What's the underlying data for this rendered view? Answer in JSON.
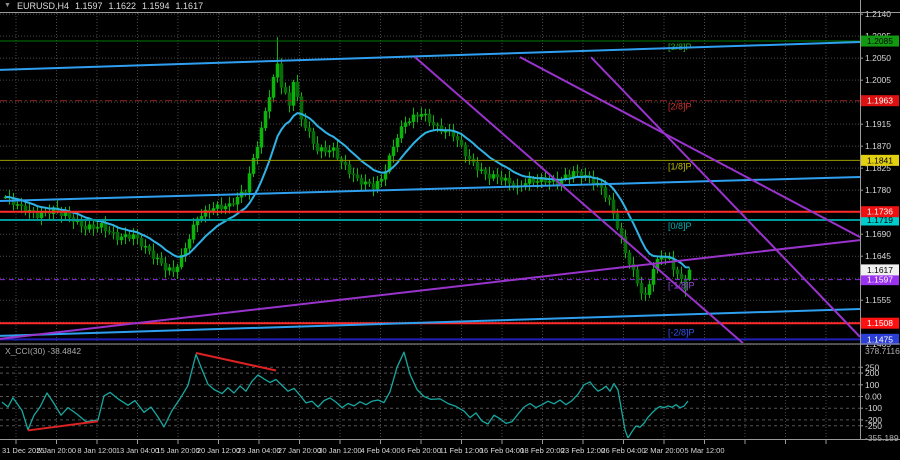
{
  "title": {
    "symbol": "EURUSD,H4",
    "open": "1.1597",
    "high": "1.1622",
    "low": "1.1594",
    "close": "1.1617",
    "dropdown_icon": "symbol-dropdown"
  },
  "colors": {
    "background": "#000000",
    "grid": "#4a4a4a",
    "pane_border": "#9a9a9a",
    "axis_text": "#d8d8d8",
    "bull_candle": "#0ab50a",
    "bear_candle": "#076e07",
    "wick": "#0db80d",
    "ma_line": "#2fb3e6",
    "channel_line": "#2f9ff0",
    "purple_line": "#9933cc",
    "sr_red": "#ff2a2a",
    "cci_line": "#16a8a0",
    "cci_trend_red": "#dd2222"
  },
  "chart_data": {
    "type": "candlestick",
    "symbol": "EURUSD",
    "timeframe": "H4",
    "grid": true,
    "x_labels": [
      "31 Dec 2025",
      "5 Jan 20:00",
      "8 Jan 12:00",
      "13 Jan 04:00",
      "15 Jan 20:00",
      "20 Jan 12:00",
      "23 Jan 04:00",
      "27 Jan 20:00",
      "30 Jan 12:00",
      "4 Feb 04:00",
      "6 Feb 20:00",
      "11 Feb 12:00",
      "16 Feb 04:00",
      "18 Feb 20:00",
      "23 Feb 12:00",
      "26 Feb 04:00",
      "2 Mar 20:00",
      "5 Mar 12:00"
    ],
    "y_ticks": [
      "1.2140",
      "1.2095",
      "1.2050",
      "1.2005",
      "1.1960",
      "1.1915",
      "1.1870",
      "1.1825",
      "1.1780",
      "1.1735",
      "1.1690",
      "1.1645",
      "1.1600",
      "1.1555",
      "1.1510",
      "1.1465"
    ],
    "y_tick_top": 1.214,
    "y_tick_step": 0.0045,
    "candle_count": 172,
    "close_anchors": [
      [
        0,
        1.1766
      ],
      [
        4,
        1.1744
      ],
      [
        8,
        1.1729
      ],
      [
        12,
        1.174
      ],
      [
        16,
        1.1725
      ],
      [
        20,
        1.1703
      ],
      [
        24,
        1.1707
      ],
      [
        28,
        1.1683
      ],
      [
        32,
        1.1687
      ],
      [
        36,
        1.1654
      ],
      [
        40,
        1.1621
      ],
      [
        42,
        1.1613
      ],
      [
        44,
        1.1642
      ],
      [
        48,
        1.1724
      ],
      [
        52,
        1.1744
      ],
      [
        56,
        1.1748
      ],
      [
        60,
        1.1781
      ],
      [
        64,
        1.1904
      ],
      [
        66,
        1.1975
      ],
      [
        68,
        1.2038
      ],
      [
        69,
        1.1995
      ],
      [
        71,
        1.1954
      ],
      [
        72,
        1.2005
      ],
      [
        74,
        1.1927
      ],
      [
        78,
        1.1862
      ],
      [
        82,
        1.1862
      ],
      [
        84,
        1.1837
      ],
      [
        88,
        1.1801
      ],
      [
        92,
        1.1788
      ],
      [
        94,
        1.1801
      ],
      [
        98,
        1.1891
      ],
      [
        100,
        1.1919
      ],
      [
        104,
        1.1938
      ],
      [
        108,
        1.1907
      ],
      [
        112,
        1.1895
      ],
      [
        116,
        1.1842
      ],
      [
        120,
        1.1811
      ],
      [
        124,
        1.1805
      ],
      [
        128,
        1.1784
      ],
      [
        130,
        1.1797
      ],
      [
        134,
        1.1801
      ],
      [
        138,
        1.1797
      ],
      [
        142,
        1.1817
      ],
      [
        146,
        1.1805
      ],
      [
        149,
        1.1784
      ],
      [
        151,
        1.1756
      ],
      [
        153,
        1.1707
      ],
      [
        155,
        1.1653
      ],
      [
        157,
        1.1612
      ],
      [
        159,
        1.1572
      ],
      [
        160,
        1.1561
      ],
      [
        162,
        1.162
      ],
      [
        164,
        1.1647
      ],
      [
        166,
        1.1637
      ],
      [
        168,
        1.1608
      ],
      [
        170,
        1.1582
      ],
      [
        171,
        1.1617
      ]
    ],
    "last_candle": {
      "open": 1.1597,
      "high": 1.1622,
      "low": 1.1594,
      "close": 1.1617
    },
    "spike": {
      "index": 68,
      "high": 1.2093
    },
    "ma_period": 13,
    "murray_lines": [
      {
        "label": "[3/8]P",
        "price": 1.2085,
        "color": "#007700",
        "label_color": "#22aa22",
        "width": 1,
        "dash": "",
        "badge": "1.2085",
        "badge_bg": "#119911",
        "badge_fg": "#000000",
        "label_dy": 9
      },
      {
        "label": "[2/8]P",
        "price": 1.1963,
        "color": "#992222",
        "label_color": "#cc3333",
        "width": 1,
        "dash": "7,3,2,3",
        "badge": "1.1963",
        "badge_bg": "#dd1111",
        "badge_fg": "#ffffff",
        "label_dy": 9
      },
      {
        "label": "[1/8]P",
        "price": 1.1841,
        "color": "#999900",
        "label_color": "#b8b800",
        "width": 1,
        "dash": "",
        "badge": "1.1841",
        "badge_bg": "#e3d011",
        "badge_fg": "#000000",
        "label_dy": 9
      },
      {
        "label": "[0/8]P",
        "price": 1.1719,
        "color": "#009999",
        "label_color": "#00b3b3",
        "width": 2,
        "dash": "",
        "badge": "1.1719",
        "badge_bg": "#00cccc",
        "badge_fg": "#000000",
        "label_dy": 9
      },
      {
        "label": "[-1/8]P",
        "price": 1.1597,
        "color": "#8a2be2",
        "label_color": "#9944dd",
        "width": 1,
        "dash": "5,4",
        "badge": "1.1597",
        "badge_bg": "#9933ee",
        "badge_fg": "#ffffff",
        "label_dy": 9
      },
      {
        "label": "[-2/8]P",
        "price": 1.1475,
        "color": "#2020bb",
        "label_color": "#3355ee",
        "width": 2,
        "dash": "",
        "badge": "1.1475",
        "badge_bg": "#2b3fd6",
        "badge_fg": "#ffffff",
        "label_dy": -4
      }
    ],
    "sr_lines": [
      {
        "price": 1.1736,
        "badge": "1.1736",
        "badge_bg": "#ee1111",
        "badge_fg": "#ffffff"
      },
      {
        "price": 1.1508,
        "badge": "1.1508",
        "badge_bg": "#ff1111",
        "badge_fg": "#ffffff"
      }
    ],
    "current_price_badge": {
      "value": "1.1617",
      "price": 1.1617,
      "bg": "#f0f0f0",
      "fg": "#000000"
    },
    "cyan_channels": [
      {
        "points": [
          [
            0,
            1.2026
          ],
          [
            860,
            1.2083
          ]
        ]
      },
      {
        "points": [
          [
            0,
            1.1758
          ],
          [
            860,
            1.1807
          ]
        ]
      },
      {
        "points": [
          [
            0,
            1.1482
          ],
          [
            860,
            1.1537
          ]
        ]
      }
    ],
    "purple_trendlines": [
      {
        "points": [
          [
            415,
            1.2052
          ],
          [
            743,
            1.1467
          ]
        ]
      },
      {
        "points": [
          [
            591,
            1.2052
          ],
          [
            860,
            1.148
          ]
        ]
      },
      {
        "points": [
          [
            520,
            1.2052
          ],
          [
            860,
            1.1684
          ]
        ]
      },
      {
        "points": [
          [
            0,
            1.1476
          ],
          [
            860,
            1.1678
          ]
        ]
      }
    ],
    "indicator": {
      "name_label": "X_CCI(30)",
      "current_value": "-38.4842",
      "max_label": "378.7116",
      "min_label": "-355.189",
      "level_ticks": [
        "250",
        "200",
        "100",
        "0.00",
        "-100",
        "-200",
        "-250"
      ],
      "levels": [
        250,
        200,
        100,
        0,
        -100,
        -200,
        -250
      ],
      "anchors": [
        [
          2,
          -48
        ],
        [
          8,
          -90
        ],
        [
          13,
          -10
        ],
        [
          22,
          -120
        ],
        [
          28,
          -285
        ],
        [
          34,
          -160
        ],
        [
          40,
          -90
        ],
        [
          47,
          30
        ],
        [
          54,
          -60
        ],
        [
          61,
          -160
        ],
        [
          68,
          -95
        ],
        [
          77,
          -150
        ],
        [
          86,
          -215
        ],
        [
          98,
          -200
        ],
        [
          104,
          5
        ],
        [
          110,
          35
        ],
        [
          118,
          -20
        ],
        [
          128,
          -75
        ],
        [
          135,
          -35
        ],
        [
          144,
          -135
        ],
        [
          151,
          -90
        ],
        [
          158,
          -175
        ],
        [
          164,
          -260
        ],
        [
          172,
          -120
        ],
        [
          180,
          -20
        ],
        [
          188,
          95
        ],
        [
          196,
          360
        ],
        [
          202,
          230
        ],
        [
          208,
          105
        ],
        [
          214,
          60
        ],
        [
          222,
          25
        ],
        [
          228,
          75
        ],
        [
          234,
          30
        ],
        [
          240,
          90
        ],
        [
          246,
          45
        ],
        [
          252,
          130
        ],
        [
          258,
          185
        ],
        [
          264,
          150
        ],
        [
          270,
          120
        ],
        [
          276,
          145
        ],
        [
          282,
          95
        ],
        [
          288,
          45
        ],
        [
          294,
          70
        ],
        [
          300,
          10
        ],
        [
          306,
          -55
        ],
        [
          312,
          -40
        ],
        [
          318,
          -90
        ],
        [
          324,
          -35
        ],
        [
          330,
          -12
        ],
        [
          336,
          -48
        ],
        [
          342,
          -95
        ],
        [
          348,
          -60
        ],
        [
          354,
          -80
        ],
        [
          360,
          -45
        ],
        [
          366,
          -70
        ],
        [
          372,
          -40
        ],
        [
          378,
          -30
        ],
        [
          384,
          -52
        ],
        [
          390,
          40
        ],
        [
          397,
          250
        ],
        [
          404,
          378.71
        ],
        [
          410,
          190
        ],
        [
          417,
          60
        ],
        [
          424,
          0
        ],
        [
          431,
          -25
        ],
        [
          440,
          -20
        ],
        [
          448,
          -60
        ],
        [
          456,
          -85
        ],
        [
          464,
          -125
        ],
        [
          470,
          -180
        ],
        [
          476,
          -140
        ],
        [
          482,
          -210
        ],
        [
          488,
          -235
        ],
        [
          494,
          -160
        ],
        [
          500,
          -190
        ],
        [
          506,
          -230
        ],
        [
          512,
          -215
        ],
        [
          518,
          -150
        ],
        [
          524,
          -90
        ],
        [
          530,
          -60
        ],
        [
          536,
          -95
        ],
        [
          542,
          -70
        ],
        [
          548,
          -40
        ],
        [
          554,
          -62
        ],
        [
          560,
          -30
        ],
        [
          566,
          -70
        ],
        [
          572,
          -35
        ],
        [
          578,
          20
        ],
        [
          584,
          100
        ],
        [
          590,
          125
        ],
        [
          594,
          80
        ],
        [
          598,
          45
        ],
        [
          602,
          62
        ],
        [
          606,
          88
        ],
        [
          610,
          45
        ],
        [
          614,
          110
        ],
        [
          618,
          55
        ],
        [
          621,
          -90
        ],
        [
          625,
          -285
        ],
        [
          628,
          -355.19
        ],
        [
          632,
          -300
        ],
        [
          636,
          -252
        ],
        [
          640,
          -262
        ],
        [
          644,
          -228
        ],
        [
          648,
          -178
        ],
        [
          652,
          -140
        ],
        [
          656,
          -108
        ],
        [
          660,
          -85
        ],
        [
          664,
          -97
        ],
        [
          668,
          -80
        ],
        [
          672,
          -92
        ],
        [
          676,
          -70
        ],
        [
          680,
          -96
        ],
        [
          684,
          -82
        ],
        [
          688,
          -38.48
        ]
      ],
      "trendlines": [
        {
          "points": [
            [
              28,
              -290
            ],
            [
              98,
              -212
            ]
          ]
        },
        {
          "points": [
            [
              196,
              372
            ],
            [
              276,
              222
            ]
          ]
        }
      ]
    }
  }
}
